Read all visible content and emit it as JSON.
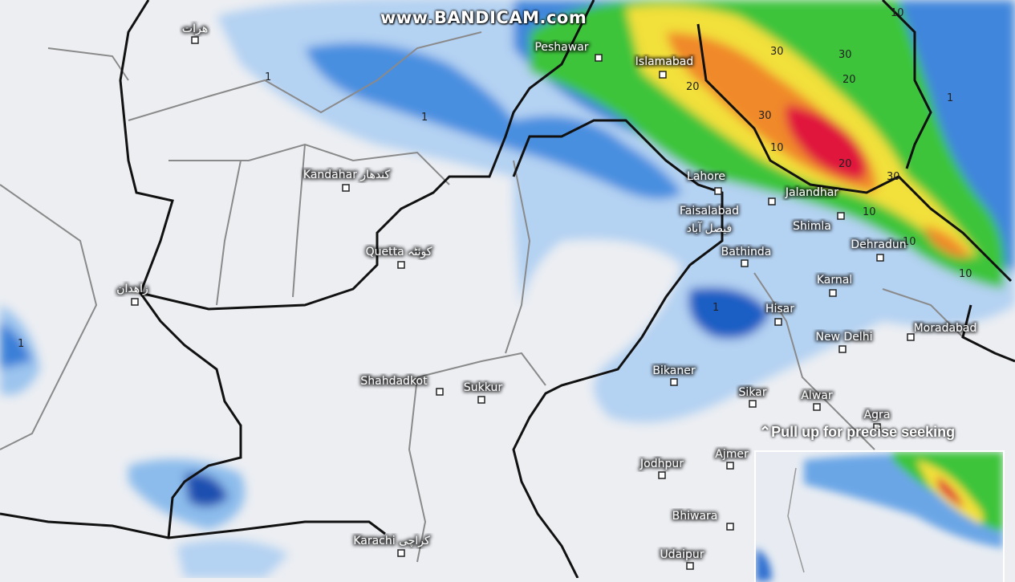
{
  "watermark": "www.BANDICAM.com",
  "video_overlay": {
    "seek_hint": "Pull up for precise seeking",
    "seek_icon": "double-chevron-up-icon"
  },
  "map": {
    "type": "precipitation-forecast",
    "colors": {
      "land": "#eceef2",
      "light_rain": "#a9ccf0",
      "rain": "#3b82dc",
      "heavy_rain": "#0a3fa0",
      "green": "#3cc43a",
      "yellow": "#f3e33a",
      "orange": "#f08a2c",
      "red": "#e0143c",
      "border": "#111111",
      "province_border": "#8a8a8a"
    },
    "cities": [
      "هرات",
      "Peshawar",
      "Islamabad",
      "Kandahar کندهار",
      "Lahore",
      "Jalandhar",
      "Faisalabad",
      "فیصل آباد",
      "Shimla",
      "Dehradun",
      "Quetta کوئٹہ",
      "Bathinda",
      "زاهدان",
      "Karnal",
      "Hisar",
      "New Delhi",
      "Moradabad",
      "Bikaner",
      "Sikar",
      "Alwar",
      "Agra",
      "Shahdadkot",
      "Sukkur",
      "Jodhpur",
      "Ajmer",
      "Bhiwara",
      "Karachi کراچی",
      "Udaipur"
    ],
    "contour_labels": [
      "10",
      "30",
      "20",
      "20",
      "30",
      "30",
      "10",
      "20",
      "30",
      "10",
      "1",
      "1",
      "1",
      "10",
      "10",
      "1",
      "1"
    ]
  }
}
